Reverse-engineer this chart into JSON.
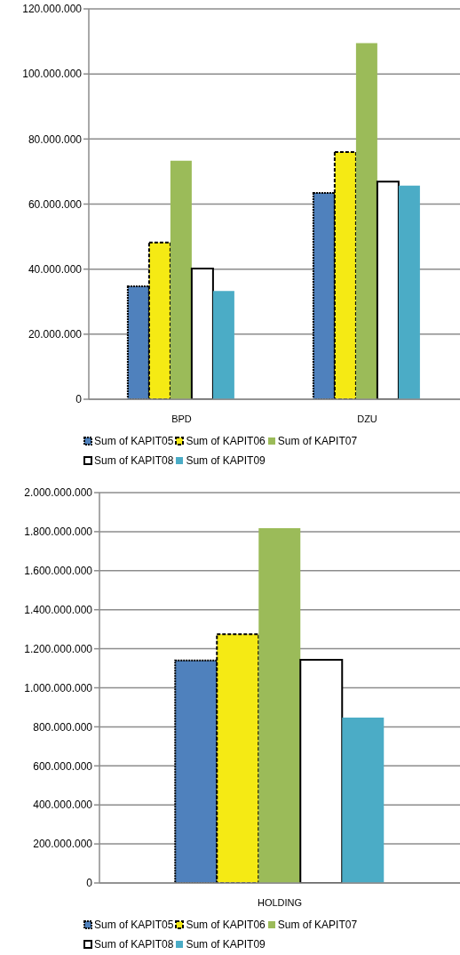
{
  "chart_data": [
    {
      "type": "bar",
      "categories": [
        "BPD",
        "DZU"
      ],
      "series": [
        {
          "name": "Sum of KAPIT05",
          "color": "#4f81bd",
          "line_style": "dotted",
          "values": [
            34700000,
            63400000
          ]
        },
        {
          "name": "Sum of KAPIT06",
          "color": "#f5ea14",
          "line_style": "dashed",
          "values": [
            48200000,
            76000000
          ]
        },
        {
          "name": "Sum of KAPIT07",
          "color": "#9bbb59",
          "values": [
            73300000,
            109500000
          ]
        },
        {
          "name": "Sum of KAPIT08",
          "color": "#ffffff",
          "line_style": "solid",
          "values": [
            40200000,
            66900000
          ]
        },
        {
          "name": "Sum of KAPIT09",
          "color": "#4bacc6",
          "values": [
            33300000,
            65700000
          ]
        }
      ],
      "ylim": [
        0,
        120000000
      ],
      "yticks": [
        0,
        {
          "value": 20000000,
          "label": "20.000.000"
        },
        {
          "value": 40000000,
          "label": "40.000.000"
        },
        {
          "value": 60000000,
          "label": "60.000.000"
        },
        {
          "value": 80000000,
          "label": "80.000.000"
        },
        {
          "value": 100000000,
          "label": "100.000.000"
        },
        {
          "value": 120000000,
          "label": "120.000.000"
        }
      ],
      "grid": "y",
      "legend": "bottom"
    },
    {
      "type": "bar",
      "categories": [
        "HOLDING"
      ],
      "series": [
        {
          "name": "Sum of KAPIT05",
          "color": "#4f81bd",
          "line_style": "dotted",
          "values": [
            1140000000
          ]
        },
        {
          "name": "Sum of KAPIT06",
          "color": "#f5ea14",
          "line_style": "dashed",
          "values": [
            1275000000
          ]
        },
        {
          "name": "Sum of KAPIT07",
          "color": "#9bbb59",
          "values": [
            1818000000
          ]
        },
        {
          "name": "Sum of KAPIT08",
          "color": "#ffffff",
          "line_style": "solid",
          "values": [
            1143000000
          ]
        },
        {
          "name": "Sum of KAPIT09",
          "color": "#4bacc6",
          "values": [
            847000000
          ]
        }
      ],
      "ylim": [
        0,
        2000000000
      ],
      "yticks": [
        0,
        {
          "value": 200000000,
          "label": "200.000.000"
        },
        {
          "value": 400000000,
          "label": "400.000.000"
        },
        {
          "value": 600000000,
          "label": "600.000.000"
        },
        {
          "value": 800000000,
          "label": "800.000.000"
        },
        {
          "value": 1000000000,
          "label": "1.000.000.000"
        },
        {
          "value": 1200000000,
          "label": "1.200.000.000"
        },
        {
          "value": 1400000000,
          "label": "1.400.000.000"
        },
        {
          "value": 1600000000,
          "label": "1.600.000.000"
        },
        {
          "value": 1800000000,
          "label": "1.800.000.000"
        },
        {
          "value": 2000000000,
          "label": "2.000.000.000"
        }
      ],
      "grid": "y",
      "legend": "bottom"
    }
  ]
}
